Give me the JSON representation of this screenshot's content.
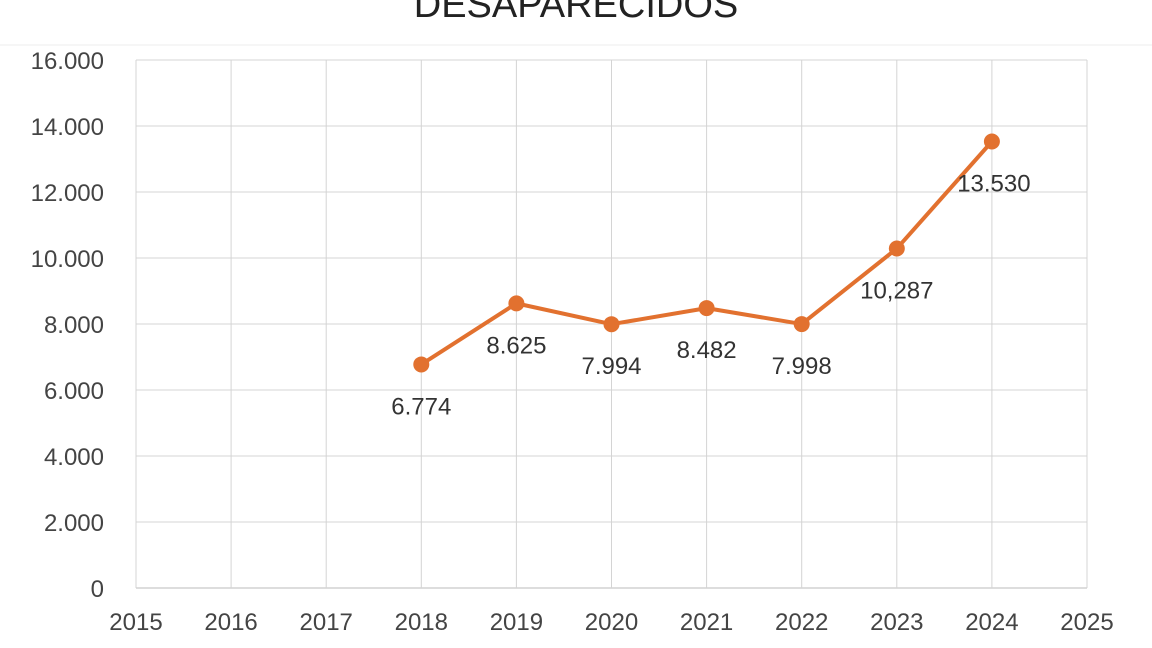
{
  "chart_data": {
    "type": "line",
    "title": "DESAPARECIDOS",
    "xlabel": "",
    "ylabel": "",
    "x_ticks": [
      "2015",
      "2016",
      "2017",
      "2018",
      "2019",
      "2020",
      "2021",
      "2022",
      "2023",
      "2024",
      "2025"
    ],
    "y_ticks": [
      "0",
      "2.000",
      "4.000",
      "6.000",
      "8.000",
      "10.000",
      "12.000",
      "14.000",
      "16.000"
    ],
    "xlim": [
      2015,
      2025
    ],
    "ylim": [
      0,
      16000
    ],
    "grid": true,
    "series": [
      {
        "color": "#e2712f",
        "x": [
          2018,
          2019,
          2020,
          2021,
          2022,
          2023,
          2024
        ],
        "values": [
          6774,
          8625,
          7994,
          8482,
          7998,
          10287,
          13530
        ],
        "labels": [
          "6.774",
          "8.625",
          "7.994",
          "8.482",
          "7.998",
          "10,287",
          "13.530"
        ]
      }
    ]
  }
}
